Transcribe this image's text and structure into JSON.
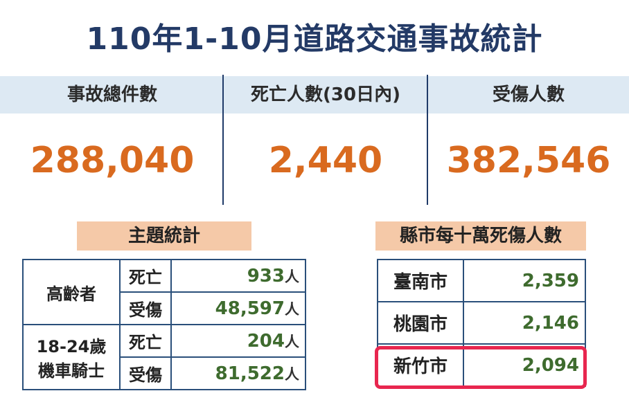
{
  "title": "110年1-10月道路交通事故統計",
  "stats": [
    {
      "label": "事故總件數",
      "value": "288,040"
    },
    {
      "label": "死亡人數(30日內)",
      "value": "2,440"
    },
    {
      "label": "受傷人數",
      "value": "382,546"
    }
  ],
  "theme": {
    "header": "主題統計",
    "unit": "人",
    "groups": [
      {
        "name": "高齡者",
        "rows": [
          {
            "type": "死亡",
            "value": "933"
          },
          {
            "type": "受傷",
            "value": "48,597"
          }
        ]
      },
      {
        "name_line1": "18-24歲",
        "name_line2": "機車騎士",
        "rows": [
          {
            "type": "死亡",
            "value": "204"
          },
          {
            "type": "受傷",
            "value": "81,522"
          }
        ]
      }
    ]
  },
  "county": {
    "header": "縣市每十萬死傷人數",
    "rows": [
      {
        "city": "臺南市",
        "value": "2,359"
      },
      {
        "city": "桃園市",
        "value": "2,146"
      },
      {
        "city": "新竹市",
        "value": "2,094"
      }
    ]
  },
  "colors": {
    "accent": "#d96a1f",
    "highlight": "#e8264f",
    "title": "#233a66"
  }
}
